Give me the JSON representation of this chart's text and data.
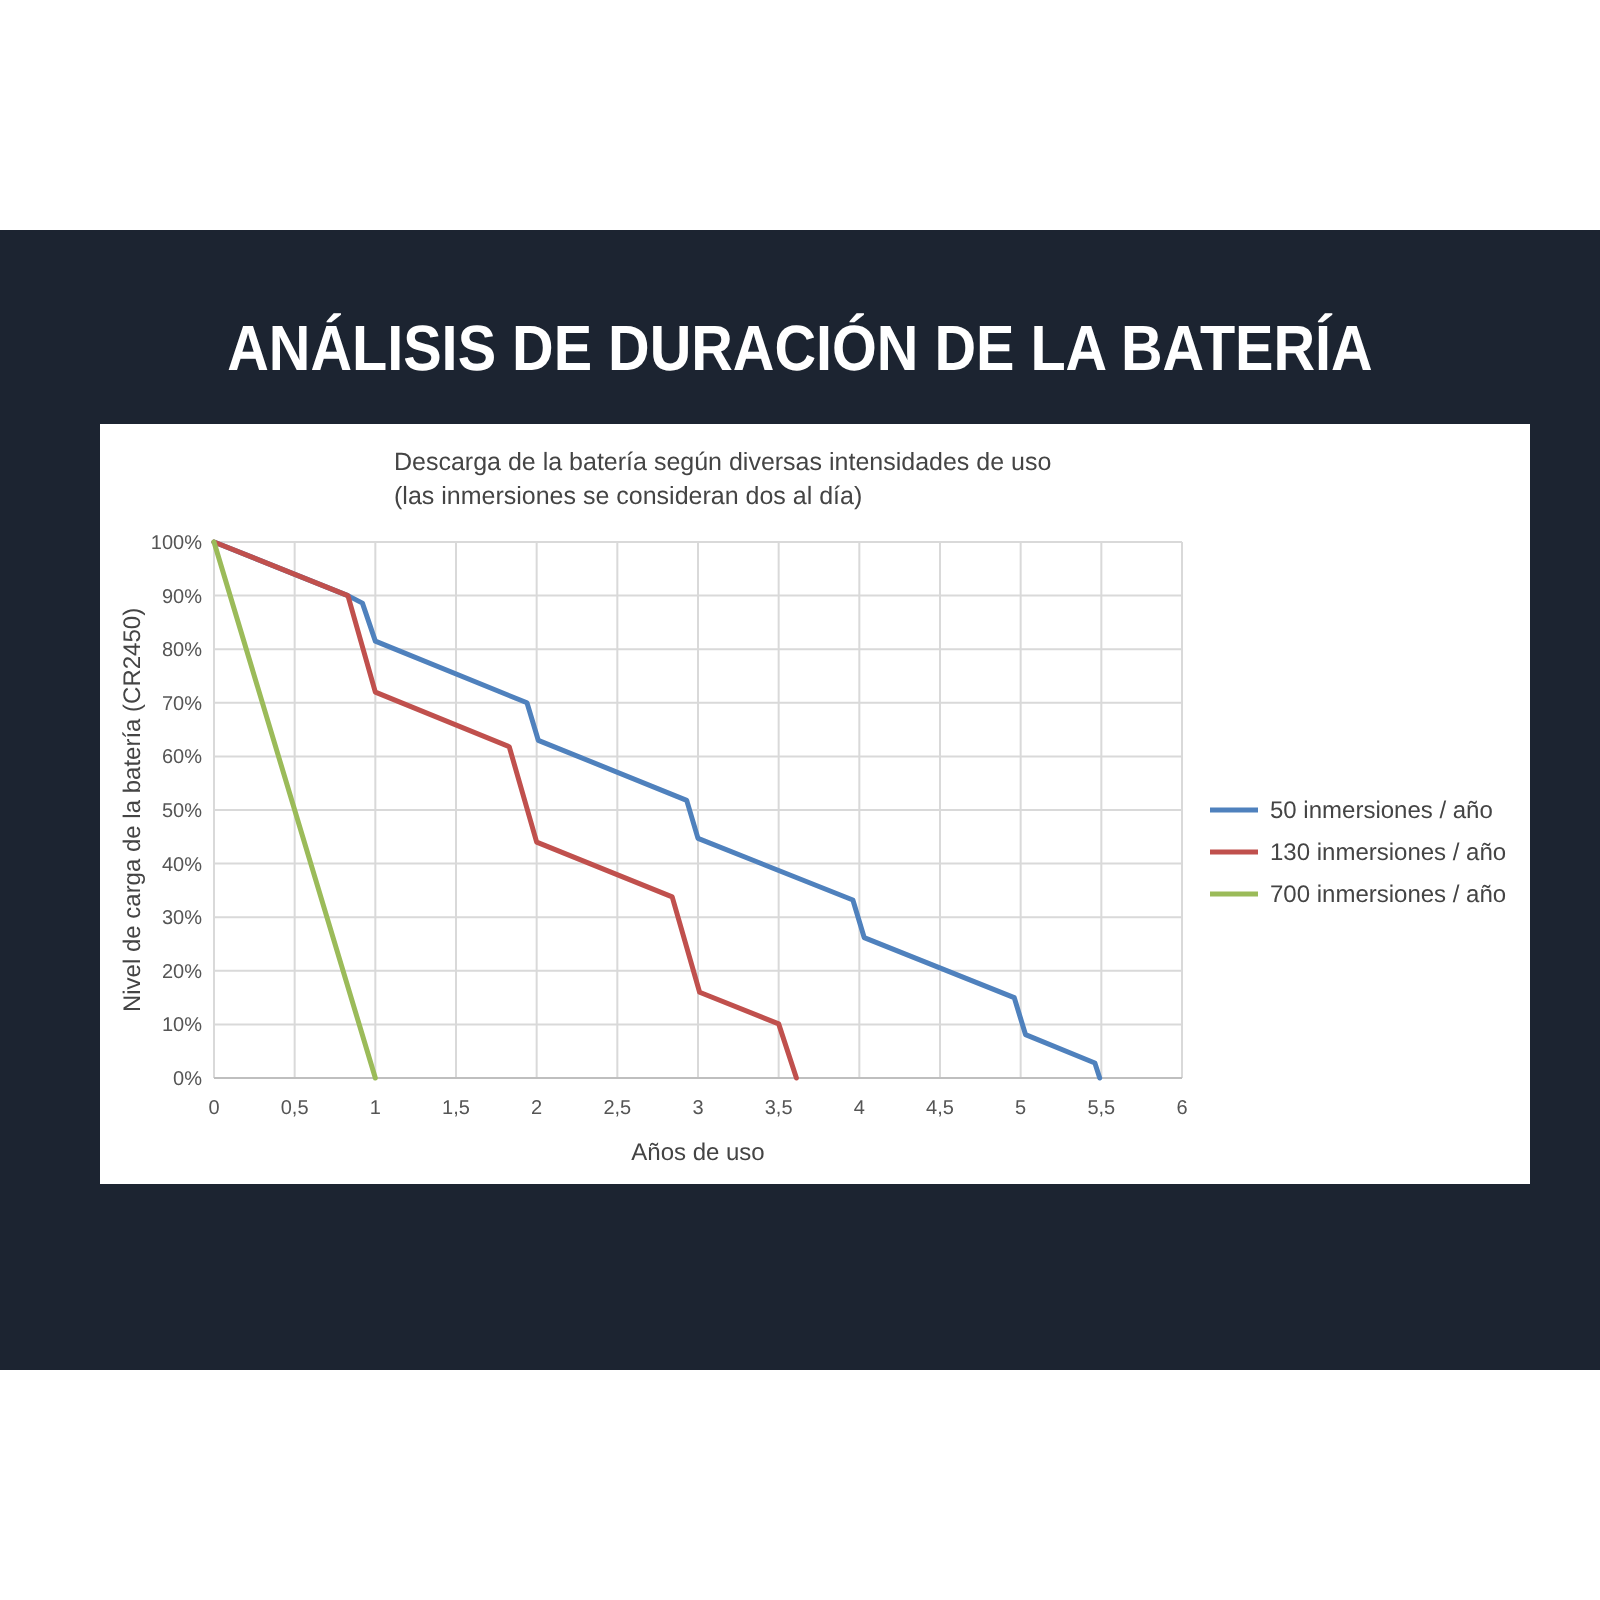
{
  "chart_data": {
    "type": "line",
    "title": "ANÁLISIS DE DURACIÓN DE LA BATERÍA",
    "subtitle": "Descarga de la batería según diversas intensidades de uso\n(las inmersiones se consideran dos al día)",
    "xlabel": "Años de uso",
    "ylabel": "Nivel de carga de la batería (CR2450)",
    "xlim": [
      0,
      6
    ],
    "xticks": [
      0,
      {
        "value": 0.5,
        "label": "0,5"
      },
      1,
      {
        "value": 1.5,
        "label": "1,5"
      },
      2,
      {
        "value": 2.5,
        "label": "2,5"
      },
      3,
      {
        "value": 3.5,
        "label": "3,5"
      },
      4,
      {
        "value": 4.5,
        "label": "4,5"
      },
      5,
      {
        "value": 5.5,
        "label": "5,5"
      },
      6
    ],
    "ylim": [
      0,
      100
    ],
    "yticks": [
      {
        "value": 0,
        "label": "0%"
      },
      {
        "value": 10,
        "label": "10%"
      },
      {
        "value": 20,
        "label": "20%"
      },
      {
        "value": 30,
        "label": "30%"
      },
      {
        "value": 40,
        "label": "40%"
      },
      {
        "value": 50,
        "label": "50%"
      },
      {
        "value": 60,
        "label": "60%"
      },
      {
        "value": 70,
        "label": "70%"
      },
      {
        "value": 80,
        "label": "80%"
      },
      {
        "value": 90,
        "label": "90%"
      },
      {
        "value": 100,
        "label": "100%"
      }
    ],
    "grid": true,
    "legend": "right",
    "marker": "none",
    "line_style": "solid",
    "series": [
      {
        "name": "50 inmersiones / año",
        "color": "#4f81bd",
        "x": [
          0,
          0.83,
          0.92,
          1,
          1.94,
          2.01,
          2.93,
          3,
          3.96,
          4.03,
          4.96,
          5.03,
          5.46,
          5.49
        ],
        "values": [
          100,
          90,
          88.6,
          81.5,
          70,
          63,
          51.8,
          44.7,
          33.2,
          26.2,
          15,
          8.1,
          2.8,
          0
        ]
      },
      {
        "name": "130 inmersiones / año",
        "color": "#c0504d",
        "x": [
          0,
          0.83,
          1,
          1.83,
          2,
          2.84,
          3.01,
          3.5,
          3.61
        ],
        "values": [
          100,
          90,
          72,
          61.8,
          44,
          33.8,
          16,
          10.1,
          0
        ]
      },
      {
        "name": "700 inmersiones / año",
        "color": "#9bbb59",
        "x": [
          0,
          1
        ],
        "values": [
          100,
          0
        ]
      }
    ]
  }
}
